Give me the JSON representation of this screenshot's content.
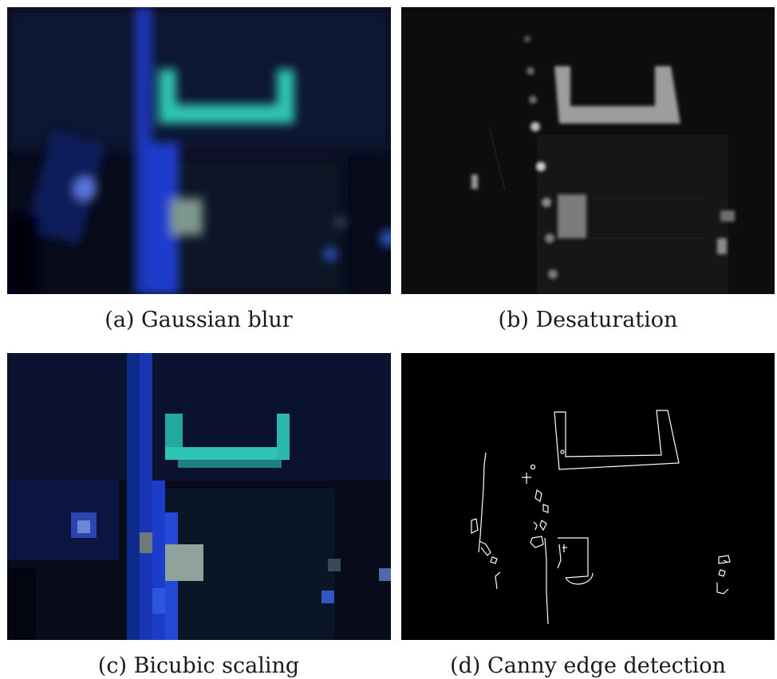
{
  "figure": {
    "panels": [
      {
        "id": "a",
        "caption": "(a) Gaussian blur"
      },
      {
        "id": "b",
        "caption": "(b) Desaturation"
      },
      {
        "id": "c",
        "caption": "(c) Bicubic scaling"
      },
      {
        "id": "d",
        "caption": "(d) Canny edge detection"
      }
    ]
  },
  "colors": {
    "background_dark": "#060a18",
    "cyan_marker": "#2ec3b2",
    "blue_led": "#1c3cc8",
    "gray_marker": "#b8b8b8",
    "edge_white": "#ffffff"
  }
}
